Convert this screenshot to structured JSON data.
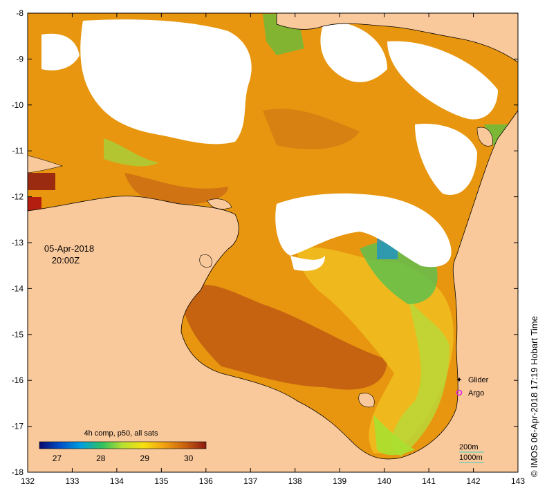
{
  "map": {
    "date_line": "05-Apr-2018",
    "time_line": "20:00Z",
    "credit": "© IMOS 06-Apr-2018 17:19 Hobart Time",
    "x_axis_ticks": [
      "132",
      "133",
      "134",
      "135",
      "136",
      "137",
      "138",
      "139",
      "140",
      "141",
      "142",
      "143"
    ],
    "y_axis_ticks": [
      "-8",
      "-9",
      "-10",
      "-11",
      "-12",
      "-13",
      "-14",
      "-15",
      "-16",
      "-17",
      "-18"
    ],
    "lon_range": [
      132,
      143
    ],
    "lat_range": [
      -18,
      -8
    ]
  },
  "colorbar": {
    "title": "4h comp, p50, all sats",
    "ticks": [
      "27",
      "28",
      "29",
      "30"
    ],
    "range": [
      26.6,
      30.4
    ],
    "stops": [
      "#0a0a6e",
      "#0050c8",
      "#00a0e0",
      "#30c060",
      "#b8e030",
      "#f8e010",
      "#f0a010",
      "#c86010",
      "#8c1a10"
    ]
  },
  "legend": {
    "glider_label": "Glider",
    "argo_label": "Argo",
    "marker_color": "#e020e0"
  },
  "contour_legend": {
    "label_200": "200m",
    "label_1000": "1000m",
    "line_color": "#40d0c0"
  },
  "colors": {
    "land": "#f9c89b",
    "cloud": "#ffffff",
    "sst_warm": "#e8960f",
    "sst_hot": "#b84a10",
    "sst_mid": "#f0c020",
    "sst_cool": "#60c040"
  }
}
